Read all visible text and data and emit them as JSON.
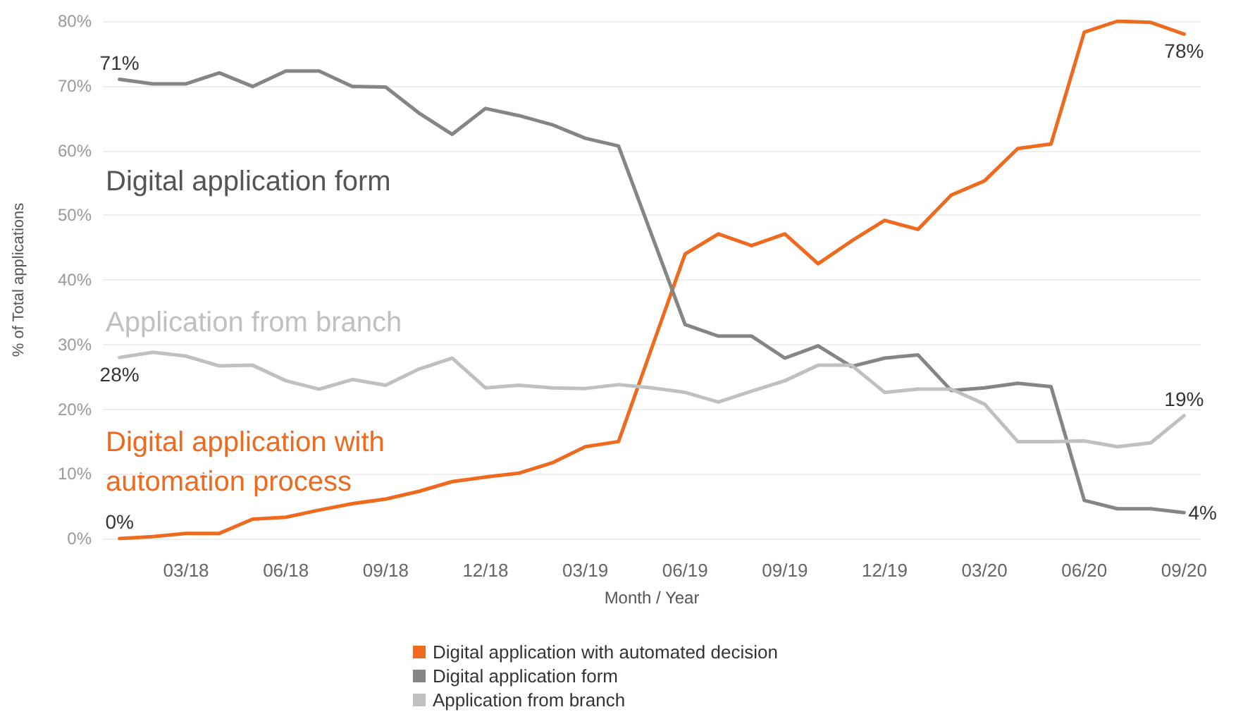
{
  "chart_data": {
    "type": "line",
    "xlabel": "Month / Year",
    "ylabel": "% of Total applications",
    "categories": [
      null,
      null,
      "03/18",
      null,
      null,
      "06/18",
      null,
      null,
      "09/18",
      null,
      null,
      "12/18",
      null,
      null,
      "03/19",
      null,
      null,
      "06/19",
      null,
      null,
      "09/19",
      null,
      null,
      "12/19",
      null,
      null,
      "03/20",
      null,
      null,
      "06/20",
      null,
      null,
      "09/20"
    ],
    "series": [
      {
        "name": "Digital application with automated decision",
        "color": "#ee6a1f",
        "values": [
          0,
          0.3,
          0.8,
          0.8,
          3.0,
          3.3,
          4.4,
          5.4,
          6.1,
          7.3,
          8.8,
          9.5,
          10.1,
          11.7,
          14.2,
          15.0,
          null,
          44.0,
          47.1,
          45.3,
          47.1,
          42.5,
          46.0,
          49.2,
          47.8,
          53.1,
          55.3,
          60.3,
          61.0,
          78.3,
          80,
          79.8,
          78
        ],
        "value_labels": [
          "0%",
          null,
          null,
          null,
          null,
          null,
          null,
          null,
          null,
          null,
          null,
          null,
          null,
          null,
          null,
          null,
          null,
          null,
          null,
          null,
          null,
          null,
          null,
          null,
          null,
          null,
          null,
          null,
          null,
          null,
          null,
          null,
          "78%"
        ]
      },
      {
        "name": "Digital application form",
        "color": "#858585",
        "values": [
          71,
          70.3,
          70.3,
          72.0,
          69.9,
          72.3,
          72.3,
          69.9,
          69.8,
          65.8,
          62.5,
          66.5,
          65.4,
          64.0,
          61.9,
          60.7,
          null,
          33.1,
          31.3,
          31.3,
          27.9,
          29.8,
          26.6,
          27.9,
          28.4,
          22.9,
          23.3,
          24.0,
          23.5,
          5.9,
          4.6,
          4.6,
          4
        ],
        "value_labels": [
          "71%",
          null,
          null,
          null,
          null,
          null,
          null,
          null,
          null,
          null,
          null,
          null,
          null,
          null,
          null,
          null,
          null,
          null,
          null,
          null,
          null,
          null,
          null,
          null,
          null,
          null,
          null,
          null,
          null,
          null,
          null,
          null,
          "4%"
        ]
      },
      {
        "name": "Application from branch",
        "color": "#c0c0c0",
        "values": [
          28,
          28.8,
          28.2,
          26.7,
          26.8,
          24.4,
          23.1,
          24.6,
          23.7,
          26.2,
          27.9,
          23.3,
          23.7,
          23.3,
          23.2,
          23.8,
          23.3,
          22.6,
          21.1,
          22.8,
          24.4,
          26.8,
          26.8,
          22.6,
          23.1,
          23.1,
          20.8,
          15.0,
          15.0,
          15.1,
          14.2,
          14.8,
          19
        ],
        "value_labels": [
          "28%",
          null,
          null,
          null,
          null,
          null,
          null,
          null,
          null,
          null,
          null,
          null,
          null,
          null,
          null,
          null,
          null,
          null,
          null,
          null,
          null,
          null,
          null,
          null,
          null,
          null,
          null,
          null,
          null,
          null,
          null,
          null,
          "19%"
        ]
      }
    ],
    "ylim": [
      0,
      80
    ],
    "yticks": [
      {
        "value": 0,
        "label": "0%"
      },
      {
        "value": 10,
        "label": "10%"
      },
      {
        "value": 20,
        "label": "20%"
      },
      {
        "value": 30,
        "label": "30%"
      },
      {
        "value": 40,
        "label": "40%"
      },
      {
        "value": 50,
        "label": "50%"
      },
      {
        "value": 60,
        "label": "60%"
      },
      {
        "value": 70,
        "label": "70%"
      },
      {
        "value": 80,
        "label": "80%"
      }
    ],
    "annotations": [
      "Digital application with\nautomation process",
      "Digital application form",
      "Application from branch"
    ],
    "grid": "y",
    "legend": "bottom",
    "marker": "none",
    "line_style": "solid"
  }
}
